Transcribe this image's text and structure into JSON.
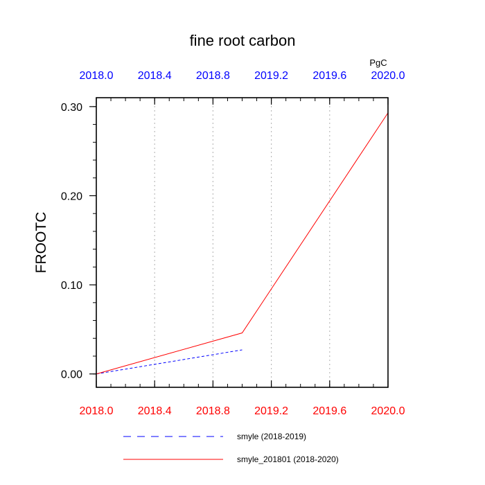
{
  "chart_data": {
    "type": "line",
    "title": "fine root carbon",
    "units": "PgC",
    "ylabel": "FROOTC",
    "xlabel": "",
    "xlim": [
      2018.0,
      2020.0
    ],
    "ylim": [
      -0.015,
      0.31
    ],
    "x_ticks": [
      2018.0,
      2018.4,
      2018.8,
      2019.2,
      2019.6,
      2020.0
    ],
    "x_tick_labels": [
      "2018.0",
      "2018.4",
      "2018.8",
      "2019.2",
      "2019.6",
      "2020.0"
    ],
    "x_minor_step": 0.1,
    "y_ticks": [
      0.0,
      0.1,
      0.2,
      0.3
    ],
    "y_tick_labels": [
      "0.00",
      "0.10",
      "0.20",
      "0.30"
    ],
    "y_minor_step": 0.02,
    "grid": "vertical dotted at major x ticks",
    "top_axis_color": "#0000ff",
    "bottom_axis_color": "#ff0000",
    "legend_position": "bottom",
    "series": [
      {
        "name": "smyle (2018-2019)",
        "color": "#0000ff",
        "dash": "dashed",
        "x": [
          2018.0,
          2019.0
        ],
        "y": [
          0.0,
          0.027
        ]
      },
      {
        "name": "smyle_201801 (2018-2020)",
        "color": "#ff0000",
        "dash": "solid",
        "x": [
          2018.0,
          2019.0,
          2020.0
        ],
        "y": [
          0.0,
          0.046,
          0.293
        ]
      }
    ]
  }
}
